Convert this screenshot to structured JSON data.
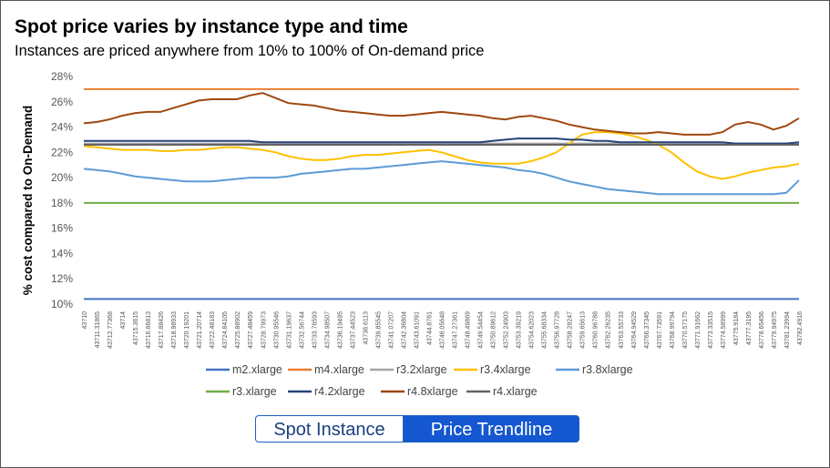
{
  "page": {
    "title": "Spot price varies by instance type and time",
    "subtitle": "Instances are priced anywhere from 10% to 100% of On-demand price"
  },
  "tabs": [
    {
      "label": "Spot Instance",
      "active": false
    },
    {
      "label": "Price Trendline",
      "active": true
    }
  ],
  "chart_data": {
    "type": "line",
    "title": "",
    "xlabel": "",
    "ylabel": "% cost compared to On-Demand",
    "ylim": [
      0.1,
      0.28
    ],
    "yticks": [
      "10%",
      "12%",
      "14%",
      "16%",
      "18%",
      "20%",
      "22%",
      "24%",
      "26%",
      "28%"
    ],
    "grid": false,
    "legend_position": "bottom",
    "x_labels": [
      "43710",
      "43711.31865",
      "43712.77368",
      "43714",
      "43715.3615",
      "43716.66813",
      "43717.88426",
      "43718.98933",
      "43720.19201",
      "43721.20714",
      "43722.48183",
      "43724.84105",
      "43725.88902",
      "43727.48459",
      "43728.79973",
      "43730.95546",
      "43731.19637",
      "43732.56744",
      "43733.76593",
      "43734.98507",
      "43736.19495",
      "43737.44523",
      "43738.6113",
      "43739.85545",
      "43741.07207",
      "43742.36804",
      "43743.61091",
      "43744.8761",
      "43746.05648",
      "43747.27361",
      "43748.49869",
      "43749.54454",
      "43750.89612",
      "43752.24903",
      "43753.39219",
      "43754.62023",
      "43755.68334",
      "43756.97728",
      "43758.28247",
      "43759.65613",
      "43760.96788",
      "43762.26235",
      "43763.55733",
      "43764.94529",
      "43766.37345",
      "43767.73591",
      "43768.99794",
      "43770.57175",
      "43771.91662",
      "43773.33515",
      "43774.58999",
      "43775.9184",
      "43777.3195",
      "43778.65456",
      "43779.94975",
      "43781.23994",
      "43782.4916"
    ],
    "series": [
      {
        "name": "m2.xlarge",
        "color": "#4472c4",
        "values": [
          0.104,
          0.104,
          0.104,
          0.104,
          0.104,
          0.104,
          0.104,
          0.104,
          0.104,
          0.104,
          0.104,
          0.104,
          0.104,
          0.104,
          0.104,
          0.104,
          0.104,
          0.104,
          0.104,
          0.104,
          0.104,
          0.104,
          0.104,
          0.104,
          0.104,
          0.104,
          0.104,
          0.104,
          0.104,
          0.104,
          0.104,
          0.104,
          0.104,
          0.104,
          0.104,
          0.104,
          0.104,
          0.104,
          0.104,
          0.104,
          0.104,
          0.104,
          0.104,
          0.104,
          0.104,
          0.104,
          0.104,
          0.104,
          0.104,
          0.104,
          0.104,
          0.104,
          0.104,
          0.104,
          0.104,
          0.104,
          0.104
        ]
      },
      {
        "name": "m4.xlarge",
        "color": "#ed7d31",
        "values": [
          0.27,
          0.27,
          0.27,
          0.27,
          0.27,
          0.27,
          0.27,
          0.27,
          0.27,
          0.27,
          0.27,
          0.27,
          0.27,
          0.27,
          0.27,
          0.27,
          0.27,
          0.27,
          0.27,
          0.27,
          0.27,
          0.27,
          0.27,
          0.27,
          0.27,
          0.27,
          0.27,
          0.27,
          0.27,
          0.27,
          0.27,
          0.27,
          0.27,
          0.27,
          0.27,
          0.27,
          0.27,
          0.27,
          0.27,
          0.27,
          0.27,
          0.27,
          0.27,
          0.27,
          0.27,
          0.27,
          0.27,
          0.27,
          0.27,
          0.27,
          0.27,
          0.27,
          0.27,
          0.27,
          0.27,
          0.27,
          0.27
        ]
      },
      {
        "name": "r3.2xlarge",
        "color": "#a5a5a5",
        "values": [
          0.227,
          0.227,
          0.227,
          0.227,
          0.227,
          0.227,
          0.227,
          0.227,
          0.227,
          0.227,
          0.227,
          0.227,
          0.227,
          0.227,
          0.227,
          0.227,
          0.227,
          0.227,
          0.227,
          0.227,
          0.227,
          0.227,
          0.227,
          0.227,
          0.227,
          0.227,
          0.227,
          0.227,
          0.227,
          0.227,
          0.227,
          0.227,
          0.227,
          0.227,
          0.227,
          0.227,
          0.227,
          0.227,
          0.227,
          0.227,
          0.227,
          0.227,
          0.227,
          0.227,
          0.227,
          0.227,
          0.227,
          0.227,
          0.227,
          0.227,
          0.227,
          0.227,
          0.227,
          0.227,
          0.227,
          0.227,
          0.227
        ]
      },
      {
        "name": "r3.4xlarge",
        "color": "#ffc000",
        "values": [
          0.225,
          0.224,
          0.223,
          0.222,
          0.222,
          0.222,
          0.221,
          0.221,
          0.222,
          0.222,
          0.223,
          0.224,
          0.224,
          0.223,
          0.222,
          0.22,
          0.217,
          0.215,
          0.214,
          0.214,
          0.215,
          0.217,
          0.218,
          0.218,
          0.219,
          0.22,
          0.221,
          0.222,
          0.22,
          0.217,
          0.214,
          0.212,
          0.211,
          0.211,
          0.211,
          0.213,
          0.216,
          0.22,
          0.227,
          0.234,
          0.236,
          0.236,
          0.235,
          0.233,
          0.23,
          0.226,
          0.22,
          0.212,
          0.205,
          0.201,
          0.199,
          0.201,
          0.204,
          0.206,
          0.208,
          0.209,
          0.211
        ]
      },
      {
        "name": "r3.8xlarge",
        "color": "#5b9bd5",
        "values": [
          0.207,
          0.206,
          0.205,
          0.203,
          0.201,
          0.2,
          0.199,
          0.198,
          0.197,
          0.197,
          0.197,
          0.198,
          0.199,
          0.2,
          0.2,
          0.2,
          0.201,
          0.203,
          0.204,
          0.205,
          0.206,
          0.207,
          0.207,
          0.208,
          0.209,
          0.21,
          0.211,
          0.212,
          0.213,
          0.212,
          0.211,
          0.21,
          0.209,
          0.208,
          0.206,
          0.205,
          0.203,
          0.2,
          0.197,
          0.195,
          0.193,
          0.191,
          0.19,
          0.189,
          0.188,
          0.187,
          0.187,
          0.187,
          0.187,
          0.187,
          0.187,
          0.187,
          0.187,
          0.187,
          0.187,
          0.188,
          0.198
        ]
      },
      {
        "name": "r3.xlarge",
        "color": "#70ad47",
        "values": [
          0.18,
          0.18,
          0.18,
          0.18,
          0.18,
          0.18,
          0.18,
          0.18,
          0.18,
          0.18,
          0.18,
          0.18,
          0.18,
          0.18,
          0.18,
          0.18,
          0.18,
          0.18,
          0.18,
          0.18,
          0.18,
          0.18,
          0.18,
          0.18,
          0.18,
          0.18,
          0.18,
          0.18,
          0.18,
          0.18,
          0.18,
          0.18,
          0.18,
          0.18,
          0.18,
          0.18,
          0.18,
          0.18,
          0.18,
          0.18,
          0.18,
          0.18,
          0.18,
          0.18,
          0.18,
          0.18,
          0.18,
          0.18,
          0.18,
          0.18,
          0.18,
          0.18,
          0.18,
          0.18,
          0.18,
          0.18,
          0.18
        ]
      },
      {
        "name": "r4.2xlarge",
        "color": "#264478",
        "values": [
          0.229,
          0.229,
          0.229,
          0.229,
          0.229,
          0.229,
          0.229,
          0.229,
          0.229,
          0.229,
          0.229,
          0.229,
          0.229,
          0.229,
          0.228,
          0.228,
          0.228,
          0.228,
          0.228,
          0.228,
          0.228,
          0.228,
          0.228,
          0.228,
          0.228,
          0.228,
          0.228,
          0.228,
          0.228,
          0.228,
          0.228,
          0.228,
          0.229,
          0.23,
          0.231,
          0.231,
          0.231,
          0.231,
          0.23,
          0.23,
          0.229,
          0.229,
          0.228,
          0.228,
          0.228,
          0.228,
          0.228,
          0.228,
          0.228,
          0.228,
          0.228,
          0.227,
          0.227,
          0.227,
          0.227,
          0.227,
          0.228
        ]
      },
      {
        "name": "r4.8xlarge",
        "color": "#9e480e",
        "values": [
          0.243,
          0.244,
          0.246,
          0.249,
          0.251,
          0.252,
          0.252,
          0.255,
          0.258,
          0.261,
          0.262,
          0.262,
          0.262,
          0.265,
          0.267,
          0.263,
          0.259,
          0.258,
          0.257,
          0.255,
          0.253,
          0.252,
          0.251,
          0.25,
          0.249,
          0.249,
          0.25,
          0.251,
          0.252,
          0.251,
          0.25,
          0.249,
          0.247,
          0.246,
          0.248,
          0.249,
          0.247,
          0.245,
          0.242,
          0.24,
          0.238,
          0.237,
          0.236,
          0.235,
          0.235,
          0.236,
          0.235,
          0.234,
          0.234,
          0.234,
          0.236,
          0.242,
          0.244,
          0.242,
          0.238,
          0.241,
          0.247
        ]
      },
      {
        "name": "r4.xlarge",
        "color": "#636363",
        "values": [
          0.226,
          0.226,
          0.226,
          0.226,
          0.226,
          0.226,
          0.226,
          0.226,
          0.226,
          0.226,
          0.226,
          0.226,
          0.226,
          0.226,
          0.226,
          0.226,
          0.226,
          0.226,
          0.226,
          0.226,
          0.226,
          0.226,
          0.226,
          0.226,
          0.226,
          0.226,
          0.226,
          0.226,
          0.226,
          0.226,
          0.226,
          0.226,
          0.226,
          0.226,
          0.226,
          0.226,
          0.226,
          0.226,
          0.226,
          0.226,
          0.226,
          0.226,
          0.226,
          0.226,
          0.226,
          0.226,
          0.226,
          0.226,
          0.226,
          0.226,
          0.226,
          0.226,
          0.226,
          0.226,
          0.226,
          0.226,
          0.226
        ]
      }
    ]
  }
}
